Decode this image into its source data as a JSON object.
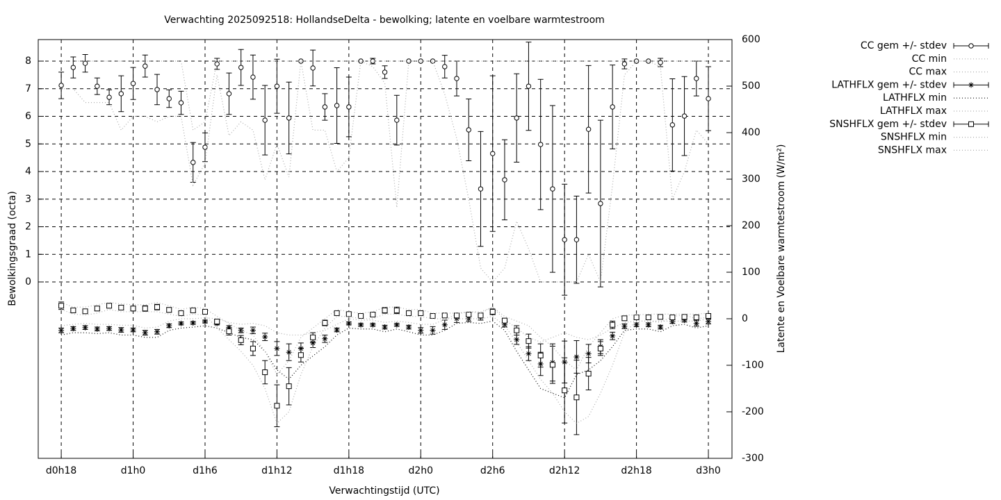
{
  "chart_data": {
    "type": "errorbar",
    "title": "Verwachting 2025092518: HollandseDelta - bewolking; latente en voelbare warmtestroom",
    "xlabel": "Verwachtingstijd (UTC)",
    "ylabel": "Bewolkingsgraad (octa)",
    "y2label": "Latente en Voelbare warmtestroom (W/m²)",
    "grid": true,
    "legend": "outside-top-right",
    "xlim": [
      16.08,
      73.97
    ],
    "xticks": [
      {
        "value": 18,
        "label": "d0h18"
      },
      {
        "value": 24,
        "label": "d1h0"
      },
      {
        "value": 30,
        "label": "d1h6"
      },
      {
        "value": 36,
        "label": "d1h12"
      },
      {
        "value": 42,
        "label": "d1h18"
      },
      {
        "value": 48,
        "label": "d2h0"
      },
      {
        "value": 54,
        "label": "d2h6"
      },
      {
        "value": 60,
        "label": "d2h12"
      },
      {
        "value": 66,
        "label": "d2h18"
      },
      {
        "value": 72,
        "label": "d3h0"
      }
    ],
    "ylim": [
      -6.39,
      8.78
    ],
    "yticks": [
      0,
      1,
      2,
      3,
      4,
      5,
      6,
      7,
      8
    ],
    "y2lim": [
      -300,
      600
    ],
    "y2ticks": [
      -300,
      -200,
      -100,
      0,
      100,
      200,
      300,
      400,
      500,
      600
    ],
    "x": [
      18,
      19,
      20,
      21,
      22,
      23,
      24,
      25,
      26,
      27,
      28,
      29,
      30,
      31,
      32,
      33,
      34,
      35,
      36,
      37,
      38,
      39,
      40,
      41,
      42,
      43,
      44,
      45,
      46,
      47,
      48,
      49,
      50,
      51,
      52,
      53,
      54,
      55,
      56,
      57,
      58,
      59,
      60,
      61,
      62,
      63,
      64,
      65,
      66,
      67,
      68,
      69,
      70,
      71,
      72
    ],
    "series": [
      {
        "name": "CC gem +/- stdev",
        "color": "#000000",
        "style": "errorbar",
        "marker": "circle",
        "values": [
          7.12,
          7.77,
          7.92,
          7.09,
          6.69,
          6.82,
          7.19,
          7.82,
          6.97,
          6.64,
          6.49,
          4.33,
          4.88,
          7.9,
          6.82,
          7.77,
          7.42,
          5.86,
          7.09,
          5.94,
          8,
          7.75,
          6.34,
          6.39,
          6.34,
          8,
          8,
          7.6,
          5.86,
          8,
          8,
          8,
          7.8,
          7.37,
          5.51,
          3.37,
          4.65,
          3.7,
          5.94,
          7.09,
          4.98,
          3.37,
          1.53,
          1.53,
          5.53,
          2.84,
          6.34,
          7.9,
          8,
          8,
          7.95,
          5.69,
          6.01,
          7.37,
          6.64
        ],
        "errors": [
          0.48,
          0.38,
          0.32,
          0.3,
          0.27,
          0.65,
          0.58,
          0.4,
          0.55,
          0.32,
          0.42,
          0.72,
          0.52,
          0.2,
          0.75,
          0.65,
          0.8,
          1.26,
          0.98,
          1.3,
          0,
          0.65,
          0.48,
          1.37,
          1.08,
          0,
          0.1,
          0.23,
          0.9,
          0,
          0,
          0,
          0.41,
          0.63,
          1.12,
          2.08,
          2.82,
          1.45,
          1.6,
          1.6,
          2.36,
          3.02,
          2.01,
          1.58,
          2.31,
          3.02,
          1.52,
          0.18,
          0,
          0,
          0.15,
          1.67,
          1.43,
          0.63,
          1.16
        ]
      },
      {
        "name": "CC min",
        "color": "#aaaaaa",
        "style": "dotted",
        "values": [
          7,
          7,
          6.5,
          6.5,
          6.5,
          5.5,
          6,
          6,
          5.8,
          6,
          6,
          3.5,
          4.3,
          7.5,
          5.3,
          5.8,
          5.5,
          3.7,
          5,
          3.8,
          8,
          5.5,
          5.5,
          4,
          4.5,
          8,
          7.8,
          7.2,
          2.7,
          8,
          8,
          8,
          6.8,
          5.2,
          3,
          0.5,
          0,
          0.5,
          2.2,
          1.2,
          0,
          0,
          0,
          0,
          1,
          0,
          3.5,
          7.5,
          8,
          8,
          7.8,
          3,
          4,
          5.5,
          5
        ]
      },
      {
        "name": "CC max",
        "color": "#aaaaaa",
        "style": "dotted",
        "values": [
          8,
          8,
          8,
          8,
          8,
          8,
          8,
          8,
          8,
          8,
          8,
          5.5,
          5.8,
          8,
          8,
          8,
          8,
          8,
          8,
          8,
          8,
          8,
          8,
          8,
          8,
          8,
          8,
          8,
          8,
          8,
          8,
          8,
          8,
          8,
          8,
          8,
          8,
          8,
          8,
          8,
          8,
          8,
          8,
          8,
          8,
          8,
          8,
          8,
          8,
          8,
          8,
          8,
          8,
          8,
          8
        ]
      },
      {
        "name": "LATHFLX gem +/- stdev",
        "color": "#000000",
        "style": "errorbar",
        "marker": "star",
        "axis": "y2",
        "values": [
          -25,
          -21,
          -19,
          -22,
          -21,
          -24,
          -24,
          -30,
          -28,
          -15,
          -10,
          -9,
          -6,
          -10,
          -19,
          -25,
          -25,
          -39,
          -64,
          -72,
          -64,
          -52,
          -43,
          -24,
          -10,
          -13,
          -13,
          -18,
          -13,
          -18,
          -25,
          -25,
          -13,
          0,
          0,
          3,
          13,
          -13,
          -45,
          -75,
          -97,
          -94,
          -93,
          -82,
          -75,
          -60,
          -37,
          -16,
          -13,
          -13,
          -18,
          -6,
          -3,
          -10,
          -6
        ],
        "errors": [
          5,
          4,
          4,
          4,
          4,
          5,
          4,
          5,
          5,
          4,
          3,
          3,
          3,
          3,
          4,
          5,
          7,
          8,
          15,
          18,
          12,
          10,
          8,
          4,
          3,
          3,
          3,
          4,
          3,
          4,
          6,
          8,
          10,
          8,
          6,
          6,
          4,
          5,
          10,
          15,
          25,
          40,
          45,
          35,
          20,
          15,
          8,
          5,
          4,
          4,
          4,
          4,
          4,
          6,
          5
        ]
      },
      {
        "name": "LATHFLX min",
        "color": "#000000",
        "style": "dotted",
        "axis": "y2",
        "values": [
          -35,
          -30,
          -30,
          -32,
          -30,
          -35,
          -35,
          -40,
          -40,
          -25,
          -20,
          -18,
          -15,
          -20,
          -30,
          -40,
          -45,
          -70,
          -110,
          -130,
          -100,
          -80,
          -60,
          -35,
          -20,
          -22,
          -22,
          -28,
          -22,
          -28,
          -35,
          -35,
          -25,
          -10,
          -8,
          -10,
          -5,
          -25,
          -70,
          -110,
          -150,
          -160,
          -170,
          -120,
          -110,
          -90,
          -60,
          -25,
          -22,
          -22,
          -28,
          -15,
          -12,
          -20,
          -15
        ]
      },
      {
        "name": "LATHFLX max",
        "color": "#aaaaaa",
        "style": "dotted",
        "axis": "y2",
        "values": [
          -15,
          -12,
          -10,
          -12,
          -12,
          -14,
          -14,
          -20,
          -18,
          -5,
          0,
          0,
          2,
          0,
          -8,
          -12,
          -10,
          -15,
          -30,
          -35,
          -35,
          -30,
          -25,
          -12,
          0,
          -3,
          -3,
          -8,
          -5,
          -8,
          -12,
          -12,
          -2,
          10,
          15,
          15,
          25,
          -2,
          -20,
          -40,
          -50,
          -40,
          -30,
          -40,
          -45,
          -35,
          -20,
          -8,
          -5,
          -5,
          -8,
          5,
          8,
          0,
          3
        ]
      },
      {
        "name": "SNSHFLX gem +/- stdev",
        "color": "#000000",
        "style": "errorbar",
        "marker": "square",
        "axis": "y2",
        "values": [
          28,
          18,
          16,
          22,
          28,
          24,
          22,
          22,
          25,
          19,
          12,
          18,
          15,
          -6,
          -27,
          -46,
          -64,
          -115,
          -187,
          -145,
          -78,
          -40,
          -9,
          12,
          10,
          6,
          9,
          18,
          18,
          12,
          12,
          6,
          7,
          7,
          9,
          7,
          15,
          -4,
          -25,
          -48,
          -79,
          -99,
          -154,
          -169,
          -118,
          -64,
          -13,
          1,
          3,
          3,
          4,
          3,
          4,
          3,
          6
        ],
        "errors": [
          8,
          5,
          3,
          5,
          5,
          5,
          5,
          6,
          6,
          5,
          4,
          3,
          3,
          4,
          8,
          10,
          15,
          25,
          45,
          40,
          15,
          10,
          6,
          4,
          3,
          3,
          4,
          6,
          7,
          5,
          4,
          3,
          3,
          4,
          4,
          5,
          6,
          5,
          10,
          15,
          25,
          40,
          70,
          80,
          35,
          15,
          8,
          5,
          3,
          3,
          3,
          4,
          4,
          4,
          5
        ]
      },
      {
        "name": "SNSHFLX min",
        "color": "#aaaaaa",
        "style": "dotted",
        "axis": "y2",
        "values": [
          20,
          10,
          8,
          12,
          20,
          15,
          15,
          15,
          15,
          10,
          5,
          10,
          8,
          -20,
          -45,
          -70,
          -100,
          -150,
          -225,
          -200,
          -120,
          -60,
          -20,
          5,
          5,
          0,
          0,
          10,
          10,
          5,
          5,
          0,
          0,
          0,
          0,
          0,
          5,
          -15,
          -50,
          -90,
          -130,
          -160,
          -200,
          -225,
          -210,
          -160,
          -100,
          -30,
          -5,
          -5,
          -5,
          -5,
          -5,
          -5,
          0
        ]
      },
      {
        "name": "SNSHFLX max",
        "color": "#aaaaaa",
        "style": "dotted",
        "axis": "y2",
        "values": [
          35,
          25,
          25,
          30,
          35,
          32,
          30,
          30,
          35,
          28,
          20,
          25,
          22,
          5,
          -10,
          -25,
          -35,
          -70,
          -120,
          -90,
          -40,
          -20,
          0,
          20,
          15,
          12,
          15,
          25,
          25,
          20,
          20,
          12,
          12,
          12,
          15,
          12,
          25,
          5,
          -5,
          -15,
          -40,
          -60,
          -90,
          -110,
          -60,
          -30,
          0,
          8,
          8,
          10,
          10,
          10,
          10,
          10,
          12
        ]
      }
    ]
  }
}
